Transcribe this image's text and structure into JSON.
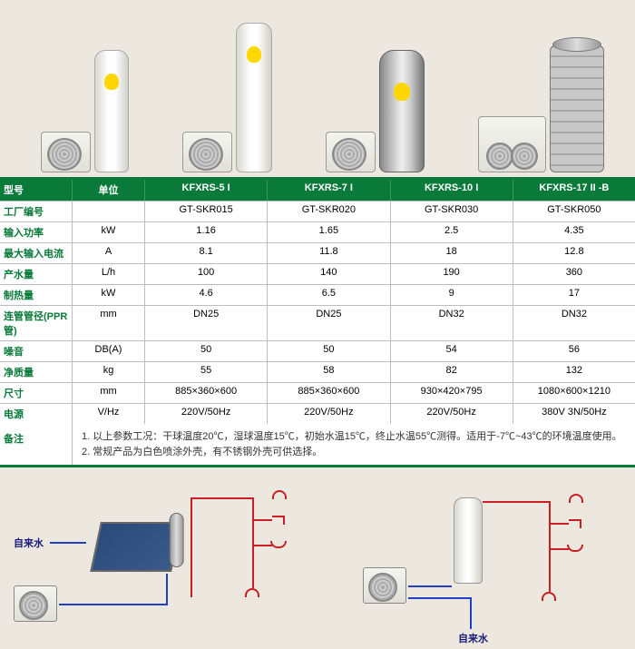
{
  "models": [
    "KFXRS-5 I",
    "KFXRS-7 I",
    "KFXRS-10 I",
    "KFXRS-17 II -B"
  ],
  "header": {
    "model": "型号",
    "unit": "单位"
  },
  "rows": [
    {
      "label": "工厂编号",
      "unit": "",
      "v": [
        "GT-SKR015",
        "GT-SKR020",
        "GT-SKR030",
        "GT-SKR050"
      ]
    },
    {
      "label": "输入功率",
      "unit": "kW",
      "v": [
        "1.16",
        "1.65",
        "2.5",
        "4.35"
      ]
    },
    {
      "label": "最大输入电流",
      "unit": "A",
      "v": [
        "8.1",
        "11.8",
        "18",
        "12.8"
      ]
    },
    {
      "label": "产水量",
      "unit": "L/h",
      "v": [
        "100",
        "140",
        "190",
        "360"
      ]
    },
    {
      "label": "制热量",
      "unit": "kW",
      "v": [
        "4.6",
        "6.5",
        "9",
        "17"
      ]
    },
    {
      "label": "连管管径(PPR管)",
      "unit": "mm",
      "v": [
        "DN25",
        "DN25",
        "DN32",
        "DN32"
      ]
    },
    {
      "label": "噪音",
      "unit": "DB(A)",
      "v": [
        "50",
        "50",
        "54",
        "56"
      ]
    },
    {
      "label": "净质量",
      "unit": "kg",
      "v": [
        "55",
        "58",
        "82",
        "132"
      ]
    },
    {
      "label": "尺寸",
      "unit": "mm",
      "v": [
        "885×360×600",
        "885×360×600",
        "930×420×795",
        "1080×600×1210"
      ]
    },
    {
      "label": "电源",
      "unit": "V/Hz",
      "v": [
        "220V/50Hz",
        "220V/50Hz",
        "220V/50Hz",
        "380V 3N/50Hz"
      ]
    }
  ],
  "notes": {
    "label": "备注",
    "line1": "1. 以上参数工况：干球温度20℃，湿球温度15℃，初始水温15℃，终止水温55℃测得。适用于-7℃~43℃的环境温度使用。",
    "line2": "2. 常规产品为白色喷涂外壳，有不锈钢外壳可供选择。"
  },
  "diagramLabels": {
    "tapWater": "自来水"
  },
  "colors": {
    "brandGreen": "#0a7a3a",
    "hotLine": "#c82020",
    "coldLine": "#2040c8"
  }
}
